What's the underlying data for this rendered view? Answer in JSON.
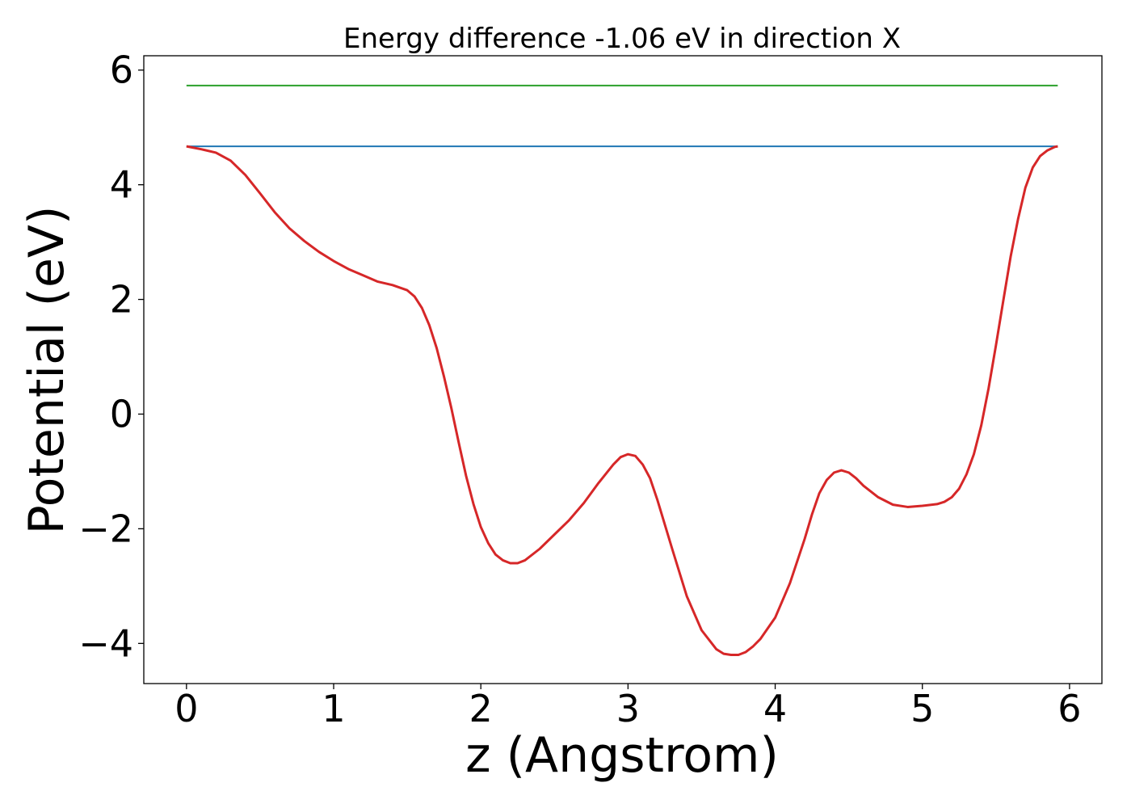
{
  "chart_data": {
    "type": "line",
    "title": "Energy difference -1.06 eV in direction X",
    "xlabel": "z (Angstrom)",
    "ylabel": "Potential (eV)",
    "xlim": [
      -0.29,
      6.22
    ],
    "ylim": [
      -4.7,
      6.25
    ],
    "xticks": [
      0,
      1,
      2,
      3,
      4,
      5,
      6
    ],
    "yticks": [
      -4,
      -2,
      0,
      2,
      4,
      6
    ],
    "xtick_labels": [
      "0",
      "1",
      "2",
      "3",
      "4",
      "5",
      "6"
    ],
    "ytick_labels": [
      "−4",
      "−2",
      "0",
      "2",
      "4",
      "6"
    ],
    "grid": false,
    "series": [
      {
        "color": "#2ca02c",
        "x": [
          0,
          5.92
        ],
        "y": [
          5.73,
          5.73
        ]
      },
      {
        "color": "#1f77b4",
        "x": [
          0,
          5.92
        ],
        "y": [
          4.67,
          4.67
        ]
      },
      {
        "color": "#d62728",
        "x": [
          0,
          0.1,
          0.2,
          0.3,
          0.4,
          0.5,
          0.6,
          0.7,
          0.8,
          0.9,
          1.0,
          1.1,
          1.2,
          1.3,
          1.4,
          1.5,
          1.55,
          1.6,
          1.65,
          1.7,
          1.75,
          1.8,
          1.85,
          1.9,
          1.95,
          2.0,
          2.05,
          2.1,
          2.15,
          2.2,
          2.25,
          2.3,
          2.4,
          2.5,
          2.6,
          2.7,
          2.8,
          2.9,
          2.95,
          3.0,
          3.05,
          3.1,
          3.15,
          3.2,
          3.3,
          3.4,
          3.5,
          3.6,
          3.65,
          3.7,
          3.75,
          3.8,
          3.85,
          3.9,
          4.0,
          4.1,
          4.2,
          4.25,
          4.3,
          4.35,
          4.4,
          4.45,
          4.5,
          4.55,
          4.6,
          4.7,
          4.8,
          4.9,
          5.0,
          5.1,
          5.15,
          5.2,
          5.25,
          5.3,
          5.35,
          5.4,
          5.45,
          5.5,
          5.55,
          5.6,
          5.65,
          5.7,
          5.75,
          5.8,
          5.85,
          5.9,
          5.92
        ],
        "y": [
          4.67,
          4.62,
          4.56,
          4.42,
          4.17,
          3.85,
          3.52,
          3.24,
          3.02,
          2.83,
          2.67,
          2.53,
          2.42,
          2.31,
          2.25,
          2.16,
          2.05,
          1.85,
          1.55,
          1.15,
          0.65,
          0.1,
          -0.5,
          -1.08,
          -1.57,
          -1.97,
          -2.25,
          -2.45,
          -2.55,
          -2.6,
          -2.6,
          -2.55,
          -2.35,
          -2.1,
          -1.85,
          -1.55,
          -1.2,
          -0.88,
          -0.75,
          -0.7,
          -0.73,
          -0.88,
          -1.12,
          -1.5,
          -2.35,
          -3.18,
          -3.77,
          -4.1,
          -4.18,
          -4.2,
          -4.2,
          -4.15,
          -4.05,
          -3.92,
          -3.55,
          -2.95,
          -2.18,
          -1.75,
          -1.38,
          -1.15,
          -1.02,
          -0.98,
          -1.02,
          -1.12,
          -1.25,
          -1.45,
          -1.58,
          -1.62,
          -1.6,
          -1.57,
          -1.53,
          -1.45,
          -1.3,
          -1.05,
          -0.7,
          -0.2,
          0.45,
          1.2,
          1.98,
          2.75,
          3.4,
          3.95,
          4.3,
          4.5,
          4.6,
          4.66,
          4.67
        ]
      }
    ]
  }
}
